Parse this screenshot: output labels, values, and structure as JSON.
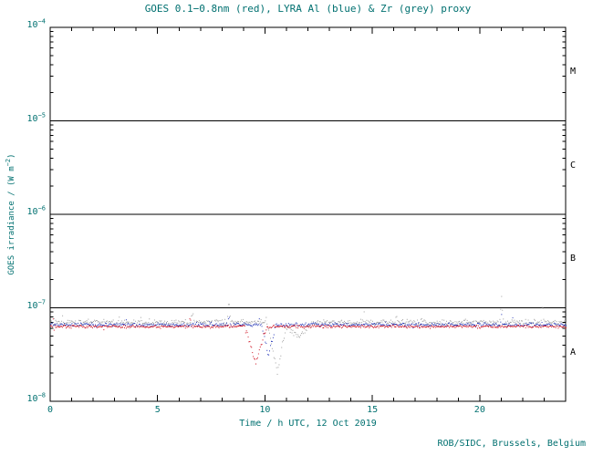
{
  "page": {
    "credit": "ROB/SIDC, Brussels, Belgium"
  },
  "colors": {
    "text": "#007070",
    "axis": "#000000",
    "class_label": "#000000",
    "goes_red": "#cf1020",
    "lyra_al_blue": "#2436b8",
    "lyra_zr_grey": "#a0a0a0"
  },
  "chart_data": {
    "type": "scatter",
    "title": "GOES 0.1−0.8nm (red), LYRA Al (blue) & Zr (grey) proxy",
    "xlabel": "Time / h UTC, 12 Oct 2019",
    "ylabel": {
      "prefix": "GOES irradiance / (W m",
      "sup": "−2",
      "suffix": ")"
    },
    "xlim": [
      0,
      24
    ],
    "x_major_tick_step": 5,
    "x_major_ticks": [
      0,
      5,
      10,
      15,
      20
    ],
    "x_minor_tick_step": 1,
    "ylog_exponents": [
      -8,
      -7,
      -6,
      -5,
      -4
    ],
    "hlines": [
      1e-07,
      1e-06,
      1e-05
    ],
    "grid": false,
    "legend": "in title",
    "flare_classes": [
      {
        "label": "A",
        "range": [
          1e-08,
          1e-07
        ]
      },
      {
        "label": "B",
        "range": [
          1e-07,
          1e-06
        ]
      },
      {
        "label": "C",
        "range": [
          1e-06,
          1e-05
        ]
      },
      {
        "label": "M",
        "range": [
          1e-05,
          0.0001
        ]
      }
    ],
    "series": [
      {
        "name": "LYRA Zr proxy",
        "color": "#a0a0a0",
        "baseline": 7e-08,
        "noise_dex": 0.05,
        "outlier_rate": 0.05,
        "spikes": [
          {
            "x": 6.62,
            "peak": 9.5e-08,
            "width": 0.07
          },
          {
            "x": 8.3,
            "peak": 1.25e-07,
            "width": 0.09
          },
          {
            "x": 11.95,
            "peak": 1.15e-07,
            "width": 0.08
          },
          {
            "x": 14.6,
            "peak": 9.2e-08,
            "width": 0.05
          },
          {
            "x": 16.1,
            "peak": 8.8e-08,
            "width": 0.05
          },
          {
            "x": 21.0,
            "peak": 1.3e-07,
            "width": 0.09
          },
          {
            "x": 22.9,
            "peak": 1.18e-07,
            "width": 0.07
          }
        ],
        "dips": [
          {
            "x": 10.55,
            "min": 2e-08,
            "width": 0.5
          },
          {
            "x": 11.5,
            "min": 4.8e-08,
            "width": 0.8
          }
        ]
      },
      {
        "name": "LYRA Al proxy",
        "color": "#2436b8",
        "baseline": 6.6e-08,
        "noise_dex": 0.034,
        "outlier_rate": 0.015,
        "spikes": [
          {
            "x": 8.3,
            "peak": 8.8e-08,
            "width": 0.05
          },
          {
            "x": 21.0,
            "peak": 8.6e-08,
            "width": 0.05
          }
        ],
        "dips": [
          {
            "x": 10.15,
            "min": 2.9e-08,
            "width": 0.35
          }
        ]
      },
      {
        "name": "GOES 0.1−0.8nm",
        "color": "#cf1020",
        "baseline": 6.3e-08,
        "noise_dex": 0.026,
        "outlier_rate": 0.01,
        "spikes": [
          {
            "x": 6.5,
            "peak": 8.8e-08,
            "width": 0.05
          }
        ],
        "dips": [
          {
            "x": 9.55,
            "min": 2.5e-08,
            "width": 0.55
          }
        ]
      }
    ]
  }
}
